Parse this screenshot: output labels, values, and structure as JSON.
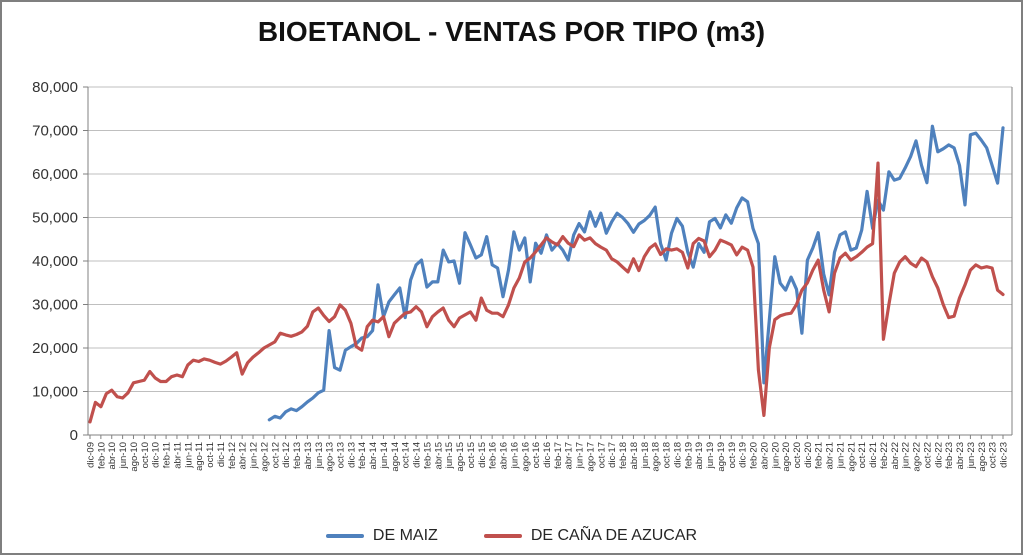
{
  "chart_data": {
    "type": "line",
    "title": "BIOETANOL - VENTAS POR TIPO (m3)",
    "xlabel": "",
    "ylabel": "",
    "ylim": [
      0,
      80000
    ],
    "y_tick_step": 10000,
    "y_tick_labels": [
      "0",
      "10,000",
      "20,000",
      "30,000",
      "40,000",
      "50,000",
      "60,000",
      "70,000",
      "80,000"
    ],
    "grid": true,
    "legend_position": "bottom",
    "axis_color": "#808080",
    "grid_color": "#bfbfbf",
    "tick_label_color": "#333333",
    "x_tick_labels": [
      "dic-09",
      "feb-10",
      "abr-10",
      "jun-10",
      "ago-10",
      "oct-10",
      "dic-10",
      "feb-11",
      "abr-11",
      "jun-11",
      "ago-11",
      "oct-11",
      "dic-11",
      "feb-12",
      "abr-12",
      "jun-12",
      "ago-12",
      "oct-12",
      "dic-12",
      "feb-13",
      "abr-13",
      "jun-13",
      "ago-13",
      "oct-13",
      "dic-13",
      "feb-14",
      "abr-14",
      "jun-14",
      "ago-14",
      "oct-14",
      "dic-14",
      "feb-15",
      "abr-15",
      "jun-15",
      "ago-15",
      "oct-15",
      "dic-15",
      "feb-16",
      "abr-16",
      "jun-16",
      "ago-16",
      "oct-16",
      "dic-16",
      "feb-17",
      "abr-17",
      "jun-17",
      "ago-17",
      "oct-17",
      "dic-17",
      "feb-18",
      "abr-18",
      "jun-18",
      "ago-18",
      "oct-18",
      "dic-18",
      "feb-19",
      "abr-19",
      "jun-19",
      "ago-19",
      "oct-19",
      "dic-19",
      "feb-20",
      "abr-20",
      "jun-20",
      "ago-20",
      "oct-20",
      "dic-20",
      "feb-21",
      "abr-21",
      "jun-21",
      "ago-21",
      "oct-21",
      "dic-21",
      "feb-22",
      "abr-22",
      "jun-22",
      "ago-22",
      "oct-22",
      "dic-22",
      "feb-23",
      "abr-23",
      "jun-23",
      "ago-23",
      "oct-23",
      "dic-23"
    ],
    "series": [
      {
        "name": "DE MAIZ",
        "color": "#4f81bd",
        "values": [
          null,
          null,
          null,
          null,
          null,
          null,
          null,
          null,
          null,
          null,
          null,
          null,
          null,
          null,
          null,
          null,
          null,
          null,
          null,
          null,
          null,
          null,
          null,
          null,
          null,
          null,
          null,
          null,
          null,
          null,
          null,
          null,
          null,
          3500,
          4300,
          3900,
          5300,
          6000,
          5600,
          6500,
          7600,
          8500,
          9700,
          10300,
          24000,
          15500,
          14900,
          19500,
          20300,
          21000,
          22300,
          22600,
          24000,
          34500,
          27200,
          30600,
          32200,
          33800,
          27000,
          35600,
          39100,
          40200,
          34000,
          35200,
          35200,
          42500,
          39800,
          40000,
          34900,
          46500,
          43700,
          40700,
          41400,
          45600,
          39100,
          38400,
          31800,
          37900,
          46700,
          42500,
          45300,
          35200,
          44100,
          41800,
          46000,
          42500,
          44000,
          42500,
          40200,
          46000,
          48600,
          46700,
          51300,
          48000,
          51000,
          46400,
          49000,
          51000,
          50000,
          48600,
          46600,
          48500,
          49300,
          50500,
          52400,
          44000,
          40200,
          46400,
          49800,
          48000,
          42000,
          38600,
          44000,
          42000,
          49000,
          49800,
          47600,
          50600,
          48700,
          52200,
          54500,
          53600,
          47500,
          44000,
          12000,
          26400,
          41000,
          34900,
          33300,
          36300,
          33500,
          23400,
          40200,
          43000,
          46500,
          37000,
          32200,
          42000,
          46000,
          46700,
          42500,
          43000,
          47100,
          56000,
          47500,
          54000,
          51700,
          60500,
          58600,
          59000,
          61400,
          64000,
          67600,
          62000,
          58000,
          71000,
          65100,
          65800,
          66700,
          66000,
          62000,
          52900,
          69000,
          69400,
          67800,
          66000,
          62000,
          57900,
          70600
        ]
      },
      {
        "name": "DE CAÑA DE AZUCAR",
        "color": "#c0504d",
        "values": [
          3000,
          7500,
          6500,
          9500,
          10300,
          8800,
          8500,
          9700,
          12000,
          12300,
          12600,
          14600,
          13100,
          12300,
          12300,
          13400,
          13800,
          13400,
          16100,
          17200,
          16900,
          17500,
          17200,
          16700,
          16300,
          17000,
          17900,
          18900,
          14000,
          16600,
          17900,
          18900,
          20000,
          20700,
          21400,
          23400,
          23000,
          22700,
          23100,
          23700,
          25000,
          28300,
          29200,
          27500,
          26100,
          27200,
          29900,
          28700,
          25700,
          20300,
          19500,
          24900,
          26400,
          26000,
          27200,
          22600,
          25700,
          26900,
          28000,
          28300,
          29500,
          28300,
          24900,
          27200,
          28300,
          29200,
          26400,
          24900,
          26900,
          27600,
          28300,
          26400,
          31500,
          28700,
          28000,
          28000,
          27200,
          29900,
          33800,
          36100,
          39800,
          40700,
          42100,
          43700,
          45300,
          44400,
          43700,
          45600,
          44100,
          43300,
          46000,
          44800,
          45300,
          44000,
          43200,
          42500,
          40500,
          39800,
          38600,
          37500,
          40500,
          37800,
          41000,
          43000,
          43900,
          41500,
          42800,
          42500,
          42800,
          42000,
          38400,
          44000,
          45200,
          44600,
          41000,
          42500,
          44800,
          44300,
          43700,
          41400,
          43200,
          42500,
          38600,
          15000,
          4500,
          20000,
          26500,
          27400,
          27800,
          28000,
          30000,
          33300,
          35000,
          37900,
          40200,
          33300,
          28300,
          37200,
          40700,
          41800,
          40200,
          41000,
          42000,
          43200,
          44000,
          62500,
          22000,
          30000,
          37200,
          39800,
          41000,
          39500,
          38700,
          40700,
          39800,
          36400,
          33800,
          30000,
          27000,
          27300,
          31500,
          34500,
          37900,
          39100,
          38400,
          38700,
          38400,
          33300,
          32300
        ]
      }
    ]
  }
}
